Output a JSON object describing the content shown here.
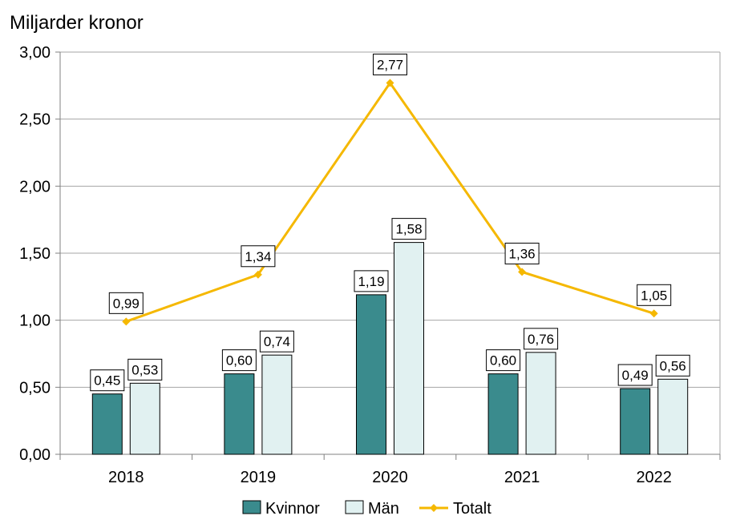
{
  "chart_data": {
    "type": "bar",
    "title": "",
    "ylabel": "Miljarder kronor",
    "xlabel": "",
    "categories": [
      "2018",
      "2019",
      "2020",
      "2021",
      "2022"
    ],
    "ylim": [
      0,
      3
    ],
    "yticks": [
      "0,00",
      "0,50",
      "1,00",
      "1,50",
      "2,00",
      "2,50",
      "3,00"
    ],
    "ytick_values": [
      0,
      0.5,
      1.0,
      1.5,
      2.0,
      2.5,
      3.0
    ],
    "grid": true,
    "legend_position": "bottom",
    "series": [
      {
        "name": "Kvinnor",
        "kind": "bar",
        "color": "#3a8b8d",
        "values": [
          0.45,
          0.6,
          1.19,
          0.6,
          0.49
        ],
        "labels": [
          "0,45",
          "0,60",
          "1,19",
          "0,60",
          "0,49"
        ]
      },
      {
        "name": "Män",
        "kind": "bar",
        "color": "#e1f1f1",
        "values": [
          0.53,
          0.74,
          1.58,
          0.76,
          0.56
        ],
        "labels": [
          "0,53",
          "0,74",
          "1,58",
          "0,76",
          "0,56"
        ]
      },
      {
        "name": "Totalt",
        "kind": "line",
        "color": "#f5b800",
        "values": [
          0.99,
          1.34,
          2.77,
          1.36,
          1.05
        ],
        "labels": [
          "0,99",
          "1,34",
          "2,77",
          "1,36",
          "1,05"
        ]
      }
    ]
  }
}
